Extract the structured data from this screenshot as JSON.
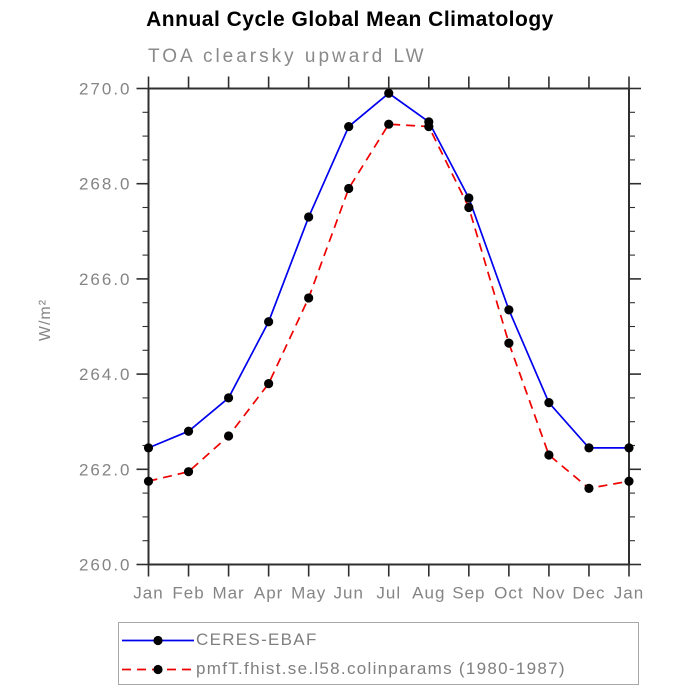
{
  "title": "Annual Cycle Global Mean Climatology",
  "subtitle": "TOA clearsky upward LW",
  "chart_data": {
    "type": "line",
    "x_categories": [
      "Jan",
      "Feb",
      "Mar",
      "Apr",
      "May",
      "Jun",
      "Jul",
      "Aug",
      "Sep",
      "Oct",
      "Nov",
      "Dec",
      "Jan"
    ],
    "series": [
      {
        "name": "CERES-EBAF",
        "line_color": "#0000ee",
        "line_style": "solid",
        "marker": "filled-circle",
        "marker_color": "#000000",
        "values": [
          262.45,
          262.8,
          263.5,
          265.1,
          267.3,
          269.2,
          269.9,
          269.3,
          267.7,
          265.35,
          263.4,
          262.45,
          262.45
        ]
      },
      {
        "name": "pmfT.fhist.se.l58.colinparams (1980-1987)",
        "line_color": "#ee0000",
        "line_style": "dashed",
        "marker": "filled-circle",
        "marker_color": "#000000",
        "values": [
          261.75,
          261.95,
          262.7,
          263.8,
          265.6,
          267.9,
          269.25,
          269.2,
          267.5,
          264.65,
          262.3,
          261.6,
          261.75
        ]
      }
    ],
    "xlabel": "",
    "ylabel": "W/m²",
    "ylim": [
      260.0,
      270.0
    ],
    "ytick_values": [
      260,
      262,
      264,
      266,
      268,
      270
    ],
    "ytick_labels": [
      "260.0",
      "262.0",
      "264.0",
      "266.0",
      "268.0",
      "270.0"
    ],
    "ytick_minor_interval": 0.5,
    "grid": false,
    "tick_direction": "out",
    "legend_position": "bottom-left-box"
  },
  "colors": {
    "axis": "#2f2f2f",
    "tick_labels": "#858585",
    "title_text": "#000000",
    "subtitle_text": "#8a8a8a",
    "legend_border": "#a8a8a8",
    "legend_text": "#7f7f7f",
    "background": "#ffffff"
  }
}
